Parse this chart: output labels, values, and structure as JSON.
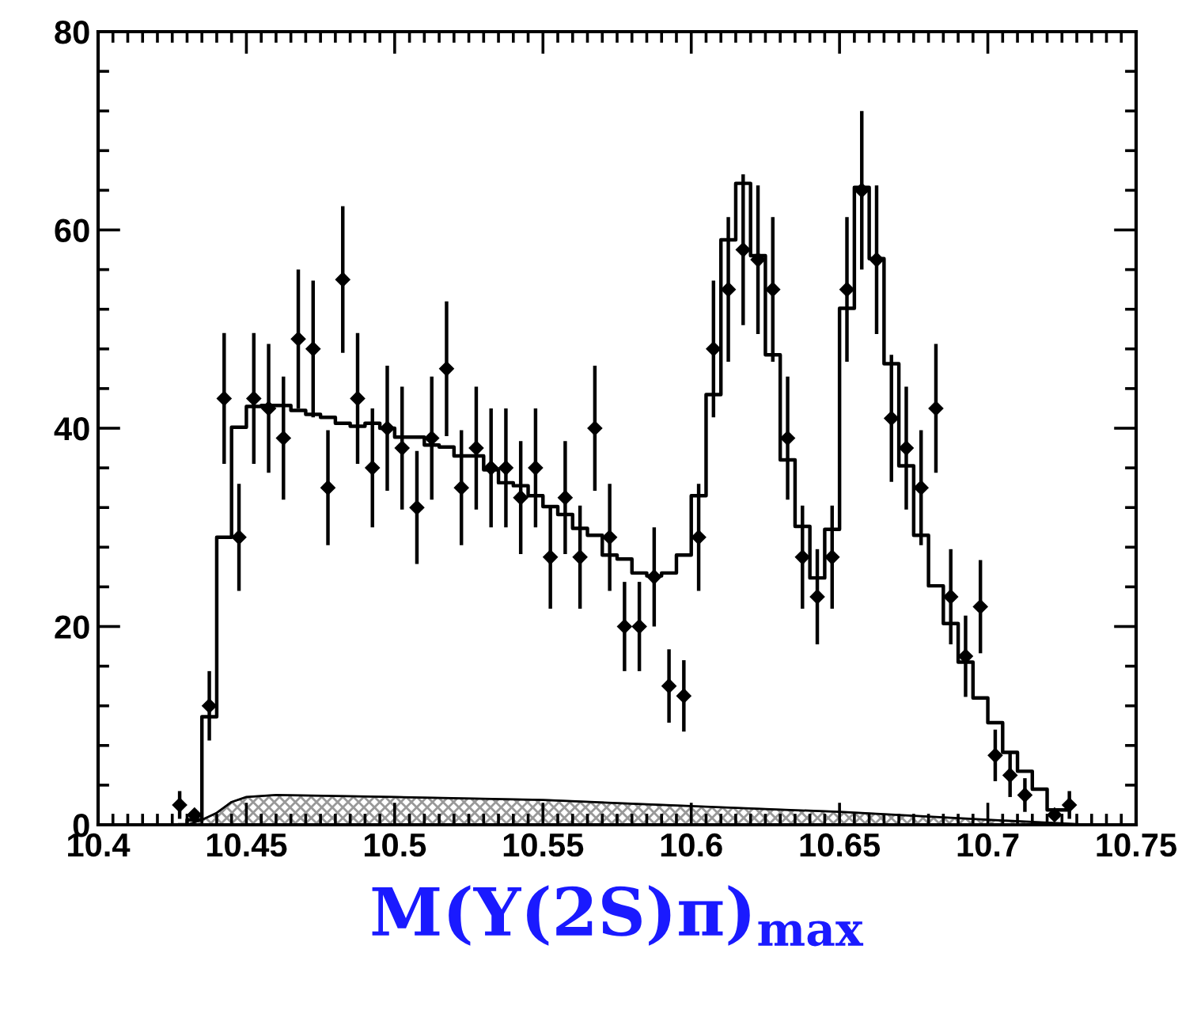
{
  "chart_data": {
    "type": "scatter",
    "xlabel": "M(Υ(2S)π)$_{max}$",
    "xlim": [
      10.4,
      10.75
    ],
    "xticks": [
      10.4,
      10.45,
      10.5,
      10.55,
      10.6,
      10.65,
      10.7,
      10.75
    ],
    "ylim": [
      0,
      80
    ],
    "yticks": [
      0,
      20,
      40,
      60,
      80
    ],
    "grid": false,
    "legend": false,
    "series": [
      {
        "type": "area",
        "color": "#999999",
        "x": [
          10.43,
          10.435,
          10.44,
          10.445,
          10.45,
          10.46,
          10.5,
          10.55,
          10.59,
          10.65,
          10.7,
          10.735
        ],
        "values": [
          0,
          0.5,
          1.2,
          2.3,
          2.8,
          3.0,
          2.8,
          2.5,
          2.0,
          1.3,
          0.5,
          0
        ]
      },
      {
        "type": "step",
        "color": "#000000",
        "x": [
          10.4275,
          10.4325,
          10.4375,
          10.4425,
          10.4475,
          10.4525,
          10.4575,
          10.4625,
          10.4675,
          10.4725,
          10.4775,
          10.4825,
          10.4875,
          10.4925,
          10.4975,
          10.5025,
          10.5075,
          10.5125,
          10.5175,
          10.5225,
          10.5275,
          10.5325,
          10.5375,
          10.5425,
          10.5475,
          10.5525,
          10.5575,
          10.5625,
          10.5675,
          10.5725,
          10.5775,
          10.5825,
          10.5875,
          10.5925,
          10.5975,
          10.6025,
          10.6075,
          10.6125,
          10.6175,
          10.6225,
          10.6275,
          10.6325,
          10.6375,
          10.6425,
          10.6475,
          10.6525,
          10.6575,
          10.6625,
          10.6675,
          10.6725,
          10.6775,
          10.6825,
          10.6875,
          10.6925,
          10.6975,
          10.7025,
          10.7075,
          10.7125,
          10.7175,
          10.7225,
          10.7275
        ],
        "values": [
          0,
          0.5,
          10.9,
          29,
          40.1,
          42.2,
          42.3,
          42.3,
          41.8,
          41.4,
          41.1,
          40.5,
          40.2,
          40.5,
          40,
          39.1,
          39.1,
          38.3,
          38.1,
          37.2,
          37.2,
          35.8,
          34.5,
          34.2,
          33.2,
          32.1,
          31.3,
          29.9,
          29.2,
          27.2,
          26.8,
          25.4,
          25.1,
          25.4,
          27.2,
          33.2,
          43.4,
          59,
          64.7,
          57.4,
          47.4,
          36.8,
          30.1,
          24.9,
          29.8,
          52.1,
          64.3,
          57.1,
          46.5,
          36.2,
          29.2,
          24.1,
          20.3,
          16.4,
          12.8,
          10.3,
          7.3,
          5.4,
          3.6,
          1.5,
          1.5
        ]
      },
      {
        "color": "#000000",
        "marker": "diamond",
        "x": [
          10.4275,
          10.4325,
          10.4375,
          10.4425,
          10.4475,
          10.4525,
          10.4575,
          10.4625,
          10.4675,
          10.4725,
          10.4775,
          10.4825,
          10.4875,
          10.4925,
          10.4975,
          10.5025,
          10.5075,
          10.5125,
          10.5175,
          10.5225,
          10.5275,
          10.5325,
          10.5375,
          10.5425,
          10.5475,
          10.5525,
          10.5575,
          10.5625,
          10.5675,
          10.5725,
          10.5775,
          10.5825,
          10.5875,
          10.5925,
          10.5975,
          10.6025,
          10.6075,
          10.6125,
          10.6175,
          10.6225,
          10.6275,
          10.6325,
          10.6375,
          10.6425,
          10.6475,
          10.6525,
          10.6575,
          10.6625,
          10.6675,
          10.6725,
          10.6775,
          10.6825,
          10.6875,
          10.6925,
          10.6975,
          10.7025,
          10.7075,
          10.7125,
          10.7175,
          10.7225,
          10.7275
        ],
        "values": [
          2,
          1,
          12,
          43,
          29,
          43,
          42,
          39,
          49,
          48,
          34,
          55,
          43,
          36,
          40,
          38,
          32,
          39,
          46,
          34,
          38,
          36,
          36,
          33,
          36,
          27,
          33,
          27,
          40,
          29,
          20,
          20,
          25,
          14,
          13,
          29,
          48,
          54,
          58,
          57,
          54,
          39,
          27,
          23,
          27,
          54,
          64,
          57,
          41,
          38,
          34,
          42,
          23,
          17,
          22,
          7,
          5,
          3,
          null,
          1,
          2
        ],
        "errors": [
          1.4,
          null,
          3.5,
          6.6,
          5.4,
          6.6,
          6.5,
          6.2,
          7,
          6.9,
          5.8,
          7.4,
          6.6,
          6,
          6.3,
          6.2,
          5.7,
          6.2,
          6.8,
          5.8,
          6.2,
          6,
          6,
          5.7,
          6,
          5.2,
          5.7,
          5.2,
          6.3,
          5.4,
          4.5,
          4.5,
          5,
          3.7,
          3.6,
          5.4,
          6.9,
          7.3,
          7.6,
          7.5,
          7.3,
          6.2,
          5.2,
          4.8,
          5.2,
          7.3,
          8,
          7.5,
          6.4,
          6.2,
          5.8,
          6.5,
          4.8,
          4.1,
          4.7,
          2.6,
          2.2,
          1.7,
          null,
          null,
          1.4
        ]
      }
    ]
  }
}
